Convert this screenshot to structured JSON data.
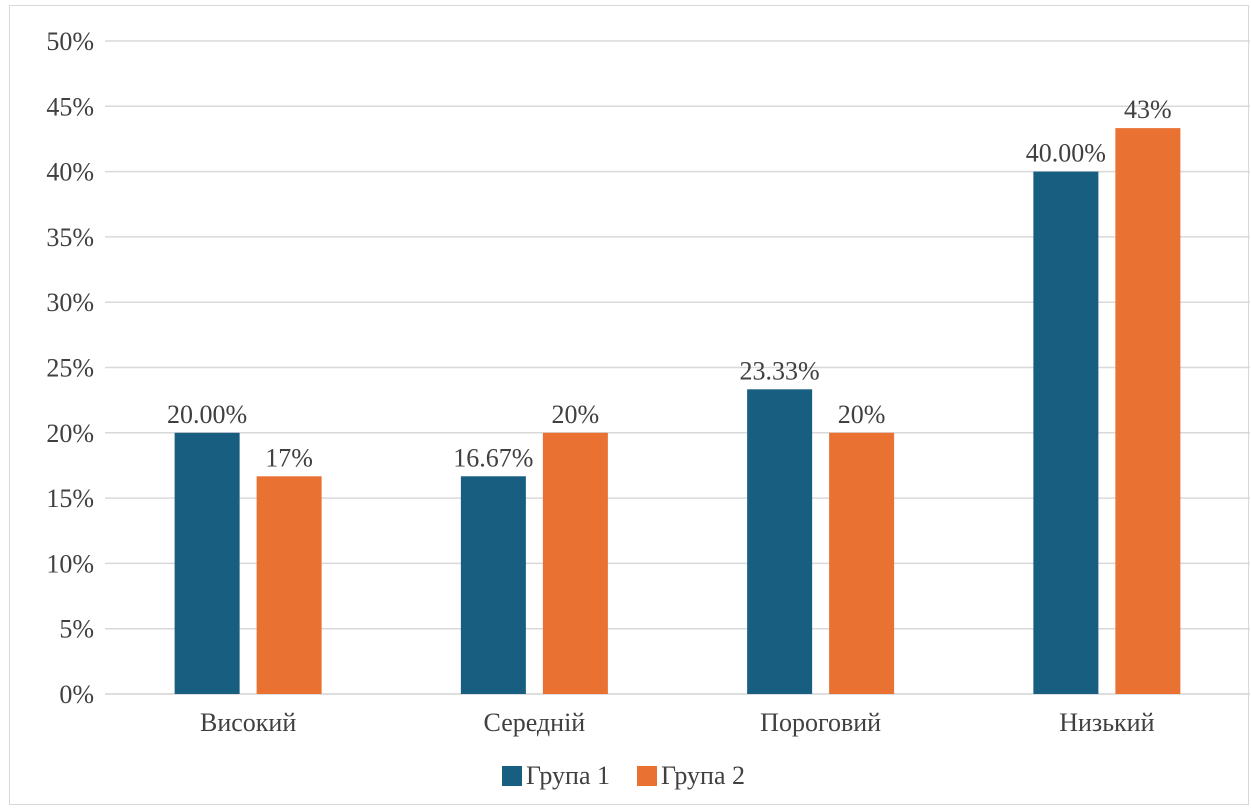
{
  "chart_data": {
    "type": "bar",
    "categories": [
      "Високий",
      "Середній",
      "Пороговий",
      "Низький"
    ],
    "series": [
      {
        "name": "Група 1",
        "color": "#175E81",
        "values": [
          20.0,
          16.67,
          23.33,
          40.0
        ],
        "data_labels": [
          "20.00%",
          "16.67%",
          "23.33%",
          "40.00%"
        ]
      },
      {
        "name": "Група 2",
        "color": "#E97132",
        "values": [
          16.67,
          20.0,
          20.0,
          43.33
        ],
        "data_labels": [
          "17%",
          "20%",
          "20%",
          "43%"
        ]
      }
    ],
    "y_ticks": [
      "0%",
      "5%",
      "10%",
      "15%",
      "20%",
      "25%",
      "30%",
      "35%",
      "40%",
      "45%",
      "50%"
    ],
    "ylim": [
      0,
      50
    ],
    "grid": true,
    "legend_position": "bottom"
  }
}
